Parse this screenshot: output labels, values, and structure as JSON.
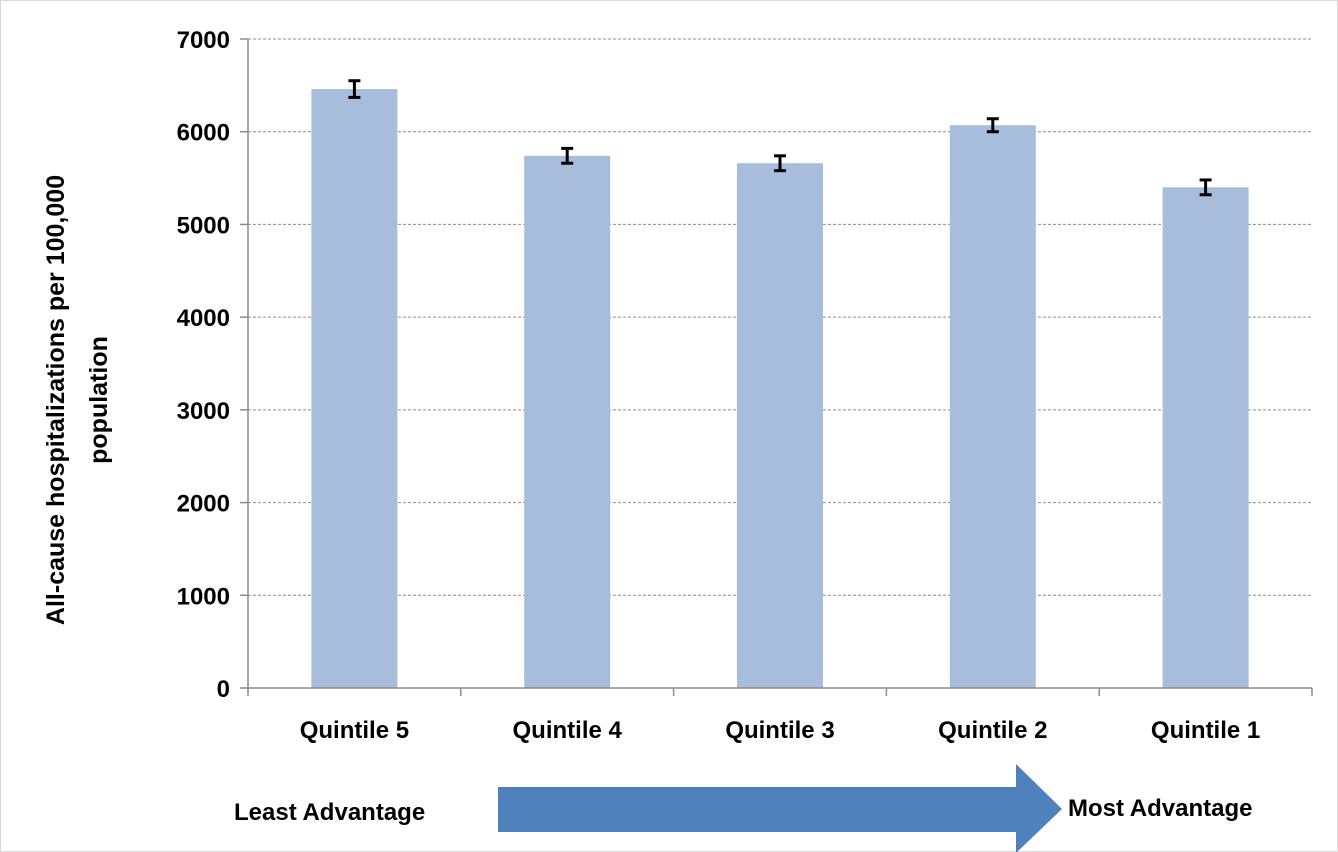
{
  "chart_data": {
    "type": "bar",
    "categories": [
      "Quintile 5",
      "Quintile 4",
      "Quintile 3",
      "Quintile 2",
      "Quintile 1"
    ],
    "values": [
      6460,
      5740,
      5660,
      6070,
      5400
    ],
    "error_margin": [
      90,
      80,
      80,
      70,
      80
    ],
    "title": "",
    "xlabel": "",
    "ylabel_lines": [
      "All-cause hospitalizations per 100,000",
      "population"
    ],
    "ylim": [
      0,
      7000
    ],
    "yticks": [
      0,
      1000,
      2000,
      3000,
      4000,
      5000,
      6000,
      7000
    ],
    "grid": true,
    "legend": "none",
    "bar_color": "#a7bddb",
    "gridline_color": "#8c8c8c",
    "error_bar_color": "#000000"
  },
  "annotation": {
    "left_label": "Least Advantage",
    "right_label": "Most Advantage",
    "arrow_color": "#4f81bd"
  }
}
